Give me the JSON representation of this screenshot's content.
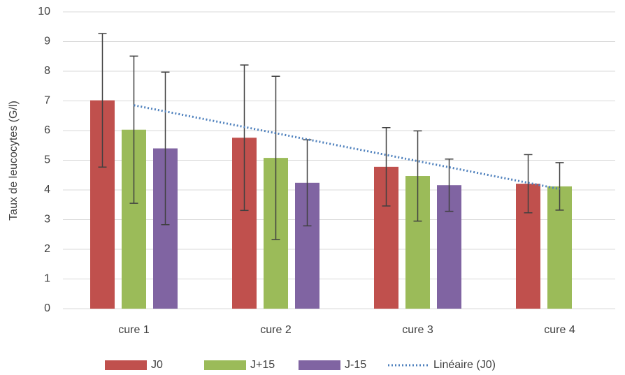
{
  "chart_data": {
    "type": "bar",
    "ylabel": "Taux de leucocytes (G/l)",
    "categories": [
      "cure 1",
      "cure 2",
      "cure 3",
      "cure 4"
    ],
    "series": [
      {
        "name": "J0",
        "color": "#c0504d",
        "values": [
          7.02,
          5.76,
          4.78,
          4.21
        ],
        "errors": [
          2.25,
          2.45,
          1.32,
          0.98
        ]
      },
      {
        "name": "J+15",
        "color": "#9bbb59",
        "values": [
          6.03,
          5.08,
          4.47,
          4.12
        ],
        "errors": [
          2.48,
          2.75,
          1.52,
          0.8
        ]
      },
      {
        "name": "J-15",
        "color": "#8064a2",
        "values": [
          5.4,
          4.24,
          4.16,
          null
        ],
        "errors": [
          2.57,
          1.45,
          0.88,
          null
        ]
      }
    ],
    "trendline": {
      "name": "Linéaire (J0)",
      "series": 0,
      "color": "#4f81bd",
      "style": "dotted"
    },
    "ylim": [
      0,
      10
    ],
    "yticks": [
      0,
      1,
      2,
      3,
      4,
      5,
      6,
      7,
      8,
      9,
      10
    ],
    "grid": true
  }
}
